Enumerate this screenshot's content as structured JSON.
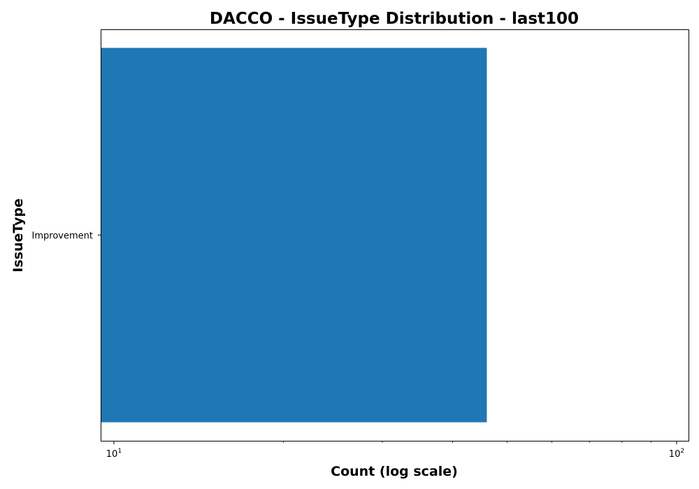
{
  "chart_data": {
    "type": "bar",
    "orientation": "horizontal",
    "title": "DACCO - IssueType Distribution - last100",
    "xlabel": "Count (log scale)",
    "ylabel": "IssueType",
    "xscale": "log",
    "xlim": [
      9.5,
      105
    ],
    "categories": [
      "Improvement"
    ],
    "values": [
      46
    ],
    "bar_color": "#1f77b4",
    "x_ticks": [
      {
        "value": 10,
        "base": "10",
        "exp": "1"
      },
      {
        "value": 100,
        "base": "10",
        "exp": "2"
      }
    ],
    "grid": false
  }
}
